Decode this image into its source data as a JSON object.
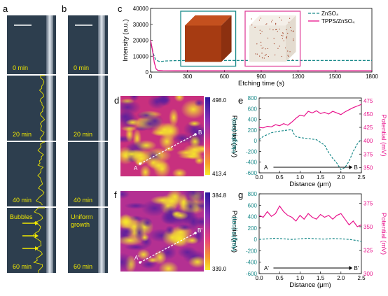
{
  "panels": {
    "a": {
      "label": "a",
      "frames": [
        {
          "time": "0 min"
        },
        {
          "time": "20 min"
        },
        {
          "time": "40 min"
        },
        {
          "time": "60 min",
          "annotation": "Bubbles"
        }
      ]
    },
    "b": {
      "label": "b",
      "frames": [
        {
          "time": "0 min"
        },
        {
          "time": "20 min"
        },
        {
          "time": "40 min"
        },
        {
          "time": "60 min",
          "annotation": "Uniform\ngrowth"
        }
      ]
    },
    "d": {
      "label": "d",
      "marker_start": "A",
      "marker_end": "B"
    },
    "f": {
      "label": "f",
      "marker_start": "A'",
      "marker_end": "B'"
    },
    "colorbar_d": {
      "max": "498.0",
      "min": "413.4",
      "label": "Potential (mV)"
    },
    "colorbar_f": {
      "max": "384.8",
      "min": "339.0",
      "label": "Potential (mV)"
    }
  },
  "colors": {
    "teal": "#1a8a8a",
    "pink": "#e8148c",
    "yellow": "#f2e900",
    "pinkbox": "#e0419a"
  },
  "chart_data": [
    {
      "id": "c",
      "label": "c",
      "type": "line",
      "xlabel": "Etching time (s)",
      "ylabel": "Intensity (a.u.)",
      "xlim": [
        0,
        1800
      ],
      "ylim": [
        0,
        40000
      ],
      "xticks": [
        0,
        300,
        600,
        900,
        1200,
        1500,
        1800
      ],
      "yticks": [
        0,
        10000,
        20000,
        30000,
        40000
      ],
      "series": [
        {
          "name": "ZnSO₄",
          "color": "#1a8a8a",
          "dash": true,
          "x": [
            0,
            20,
            40,
            60,
            80,
            120,
            200,
            300,
            500,
            800,
            1100,
            1400,
            1800
          ],
          "y": [
            19500,
            12000,
            8000,
            7000,
            6600,
            7000,
            7200,
            7300,
            7300,
            7300,
            7300,
            7300,
            7300
          ]
        },
        {
          "name": "TPPS/ZnSO₄",
          "color": "#e8148c",
          "dash": false,
          "x": [
            0,
            15,
            30,
            45,
            60,
            100,
            200,
            400,
            800,
            1200,
            1800
          ],
          "y": [
            20000,
            14000,
            6000,
            2000,
            1000,
            900,
            800,
            800,
            800,
            800,
            800
          ]
        }
      ]
    },
    {
      "id": "e",
      "label": "e",
      "type": "line",
      "xlabel": "Distance (μm)",
      "ylabel_left": "Height (nm)",
      "ylabel_right": "Potential (mV)",
      "xlim": [
        0,
        2.5
      ],
      "ylim_left": [
        -600,
        800
      ],
      "ylim_right": [
        340,
        480
      ],
      "xticks": [
        0.0,
        0.5,
        1.0,
        1.5,
        2.0,
        2.5
      ],
      "yticks_left": [
        -600,
        -400,
        -200,
        0,
        200,
        400,
        600,
        800
      ],
      "yticks_right": [
        350,
        375,
        400,
        425,
        450,
        475
      ],
      "markers": {
        "start": "A",
        "end": "B"
      },
      "series": [
        {
          "name": "Height",
          "axis": "left",
          "color": "#1a8a8a",
          "dash": true,
          "x": [
            0,
            0.1,
            0.3,
            0.5,
            0.7,
            0.8,
            0.85,
            0.9,
            1.0,
            1.2,
            1.4,
            1.6,
            1.7,
            1.8,
            1.9,
            2.0,
            2.1,
            2.2,
            2.3,
            2.4,
            2.5
          ],
          "y": [
            20,
            80,
            150,
            180,
            200,
            210,
            130,
            80,
            60,
            40,
            20,
            -80,
            -220,
            -330,
            -420,
            -540,
            -500,
            -380,
            -200,
            -60,
            30
          ]
        },
        {
          "name": "Potential",
          "axis": "right",
          "color": "#e8148c",
          "dash": false,
          "x": [
            0,
            0.1,
            0.2,
            0.3,
            0.4,
            0.5,
            0.6,
            0.7,
            0.8,
            0.9,
            1.0,
            1.1,
            1.2,
            1.3,
            1.4,
            1.5,
            1.6,
            1.7,
            1.8,
            1.9,
            2.0,
            2.1,
            2.2,
            2.3,
            2.4,
            2.5
          ],
          "y": [
            425,
            424,
            427,
            426,
            430,
            428,
            432,
            429,
            435,
            442,
            448,
            446,
            455,
            452,
            456,
            451,
            453,
            450,
            455,
            452,
            449,
            454,
            458,
            462,
            465,
            468
          ]
        }
      ]
    },
    {
      "id": "g",
      "label": "g",
      "type": "line",
      "xlabel": "Distance (μm)",
      "ylabel_left": "Height (nm)",
      "ylabel_right": "Potential (mV)",
      "xlim": [
        0,
        2.5
      ],
      "ylim_left": [
        -600,
        800
      ],
      "ylim_right": [
        300,
        385
      ],
      "xticks": [
        0.0,
        0.5,
        1.0,
        1.5,
        2.0,
        2.5
      ],
      "yticks_left": [
        -600,
        -400,
        -200,
        0,
        200,
        400,
        600,
        800
      ],
      "yticks_right": [
        300,
        325,
        350,
        375
      ],
      "markers": {
        "start": "A'",
        "end": "B'"
      },
      "series": [
        {
          "name": "Height",
          "axis": "left",
          "color": "#1a8a8a",
          "dash": true,
          "x": [
            0,
            0.2,
            0.4,
            0.6,
            0.8,
            1.0,
            1.2,
            1.4,
            1.6,
            1.8,
            2.0,
            2.2,
            2.4,
            2.5
          ],
          "y": [
            0,
            10,
            20,
            10,
            0,
            10,
            20,
            10,
            5,
            15,
            10,
            0,
            -20,
            -40
          ]
        },
        {
          "name": "Potential",
          "axis": "right",
          "color": "#e8148c",
          "dash": false,
          "x": [
            0,
            0.1,
            0.2,
            0.3,
            0.4,
            0.5,
            0.6,
            0.7,
            0.8,
            0.9,
            1.0,
            1.1,
            1.2,
            1.3,
            1.4,
            1.5,
            1.6,
            1.7,
            1.8,
            1.9,
            2.0,
            2.1,
            2.2,
            2.3,
            2.4,
            2.5
          ],
          "y": [
            362,
            360,
            366,
            361,
            364,
            372,
            366,
            362,
            360,
            356,
            362,
            358,
            364,
            360,
            358,
            363,
            360,
            362,
            358,
            362,
            364,
            358,
            352,
            356,
            350,
            352
          ]
        }
      ]
    }
  ]
}
